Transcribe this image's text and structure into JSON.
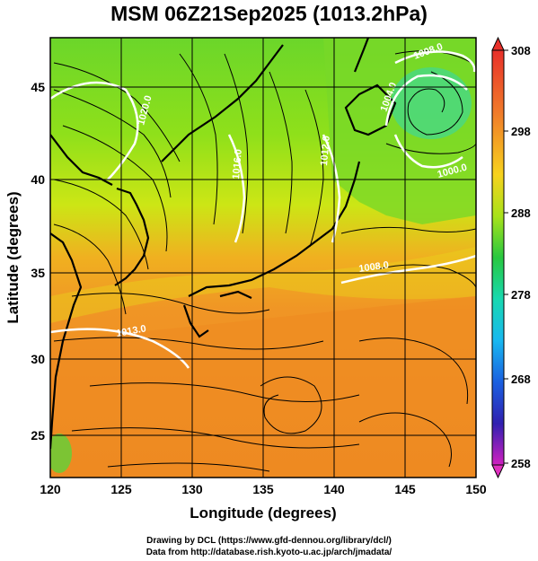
{
  "title": "MSM 06Z21Sep2025 (1013.2hPa)",
  "x_axis": {
    "label": "Longitude (degrees)",
    "ticks": [
      "120",
      "125",
      "130",
      "135",
      "140",
      "145",
      "150"
    ]
  },
  "y_axis": {
    "label": "Latitude  (degrees)",
    "ticks": [
      "25",
      "30",
      "35",
      "40",
      "45"
    ]
  },
  "colorbar": {
    "ticks": [
      "308",
      "298",
      "288",
      "278",
      "268",
      "258"
    ]
  },
  "contours": {
    "l1008a": "1008.0",
    "l1008b": "1008.0",
    "l1004": "1004.0",
    "l1020": "1020.0",
    "l1016": "1016.0",
    "l1012": "1012.0",
    "l1013": "1013.0",
    "l1000": "1000.0"
  },
  "credits": {
    "line1": "Drawing by DCL (https://www.gfd-dennou.org/library/dcl/)",
    "line2": "Data from http://database.rish.kyoto-u.ac.jp/arch/jmadata/"
  }
}
